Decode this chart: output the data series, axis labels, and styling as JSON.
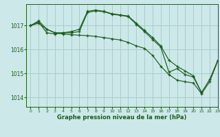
{
  "title": "Graphe pression niveau de la mer (hPa)",
  "background_color": "#cce8e8",
  "grid_color": "#aacccc",
  "line_color": "#1a5c1a",
  "xlim": [
    -0.5,
    23
  ],
  "ylim": [
    1013.6,
    1017.9
  ],
  "yticks": [
    1014,
    1015,
    1016,
    1017
  ],
  "xticks": [
    0,
    1,
    2,
    3,
    4,
    5,
    6,
    7,
    8,
    9,
    10,
    11,
    12,
    13,
    14,
    15,
    16,
    17,
    18,
    19,
    20,
    21,
    22,
    23
  ],
  "line1_x": [
    0,
    1,
    2,
    3,
    4,
    5,
    6,
    7,
    8,
    9,
    10,
    11,
    12,
    13,
    14,
    15,
    16,
    17,
    18,
    19,
    20,
    21
  ],
  "line1_y": [
    1017.0,
    1017.2,
    1016.85,
    1016.7,
    1016.7,
    1016.75,
    1016.85,
    1017.6,
    1017.65,
    1017.6,
    1017.5,
    1017.45,
    1017.4,
    1017.1,
    1016.8,
    1016.5,
    1016.15,
    1015.55,
    1015.3,
    1015.1,
    1014.9,
    1014.2
  ],
  "line2_x": [
    0,
    1,
    2,
    3,
    4,
    5,
    6,
    7,
    8,
    9,
    10,
    11,
    12,
    13,
    14,
    15,
    16,
    17,
    18,
    19,
    20,
    21,
    22,
    23
  ],
  "line2_y": [
    1017.0,
    1017.15,
    1016.7,
    1016.65,
    1016.7,
    1016.7,
    1016.75,
    1017.55,
    1017.62,
    1017.58,
    1017.48,
    1017.43,
    1017.38,
    1017.05,
    1016.75,
    1016.42,
    1016.1,
    1015.05,
    1015.2,
    1014.95,
    1014.85,
    1014.2,
    1014.75,
    1015.55
  ],
  "line3_x": [
    0,
    1,
    2,
    3,
    4,
    5,
    6,
    7,
    8,
    9,
    10,
    11,
    12,
    13,
    14,
    15,
    16,
    17,
    18,
    19,
    20,
    21,
    22,
    23
  ],
  "line3_y": [
    1017.0,
    1017.1,
    1016.85,
    1016.7,
    1016.65,
    1016.62,
    1016.6,
    1016.58,
    1016.55,
    1016.5,
    1016.45,
    1016.4,
    1016.3,
    1016.15,
    1016.05,
    1015.75,
    1015.3,
    1014.95,
    1014.72,
    1014.65,
    1014.6,
    1014.15,
    1014.65,
    1015.52
  ]
}
